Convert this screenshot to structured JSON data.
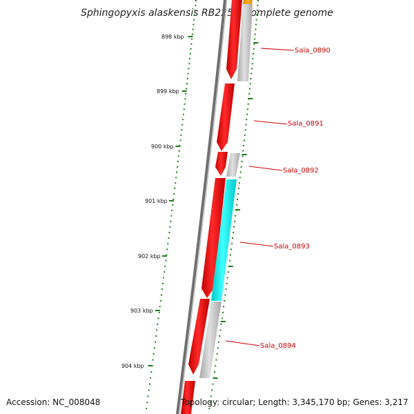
{
  "title": "Sphingopyxis alaskensis RB2256, complete genome",
  "accession": "Accession: NC_008048",
  "topology": "Topology: circular; Length: 3,345,170 bp; Genes: 3,217",
  "ruler": [
    "898 kbp",
    "899 kbp",
    "900 kbp",
    "901 kbp",
    "902 kbp",
    "903 kbp",
    "904 kbp"
  ],
  "gene_labels": [
    "Sala_0890",
    "Sala_0891",
    "Sala_0892",
    "Sala_0893",
    "Sala_0894"
  ],
  "colors": {
    "cds": "#e80000",
    "gene": "#c0c0c0",
    "rna": "#00e5e5",
    "other": "#f0a000",
    "tick": "#1a7a1a",
    "backbone": "#707070",
    "label": "#cc0000"
  }
}
